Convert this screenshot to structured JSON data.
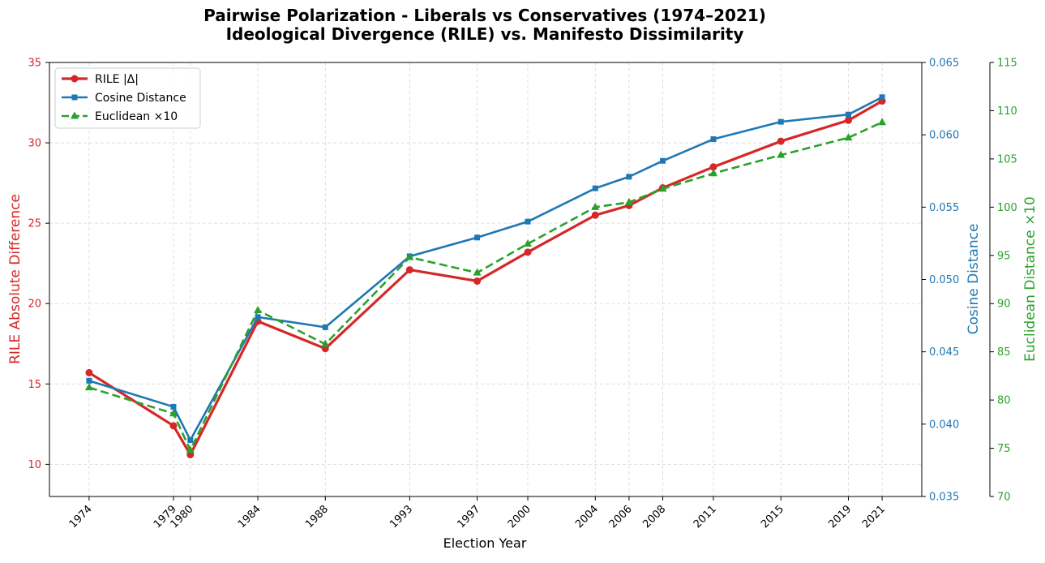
{
  "chart_data": {
    "type": "line",
    "title_line1": "Pairwise Polarization - Liberals vs Conservatives (1974–2021)",
    "title_line2": "Ideological Divergence (RILE) vs. Manifesto Dissimilarity",
    "xlabel": "Election Year",
    "x": [
      1974,
      1979,
      1980,
      1984,
      1988,
      1993,
      1997,
      2000,
      2004,
      2006,
      2008,
      2011,
      2015,
      2019,
      2021
    ],
    "grid": true,
    "legend_position": "top-left",
    "axes": {
      "left": {
        "label": "RILE Absolute Difference",
        "ylim": [
          8,
          35
        ],
        "ticks": [
          10,
          15,
          20,
          25,
          30,
          35
        ],
        "color": "#d62728"
      },
      "right1": {
        "label": "Cosine Distance",
        "ylim": [
          0.035,
          0.065
        ],
        "ticks": [
          0.035,
          0.04,
          0.045,
          0.05,
          0.055,
          0.06,
          0.065
        ],
        "tick_labels": [
          "0.035",
          "0.040",
          "0.045",
          "0.050",
          "0.055",
          "0.060",
          "0.065"
        ],
        "color": "#1f77b4"
      },
      "right2": {
        "label": "Euclidean Distance ×10",
        "ylim": [
          70,
          115
        ],
        "ticks": [
          70,
          75,
          80,
          85,
          90,
          95,
          100,
          105,
          110,
          115
        ],
        "color": "#2ca02c"
      }
    },
    "series": [
      {
        "name": "RILE |Δ|",
        "axis": "left",
        "color": "#d62728",
        "marker": "circle",
        "dash": "solid",
        "values": [
          15.7,
          12.4,
          10.6,
          18.9,
          17.2,
          22.1,
          21.4,
          23.2,
          25.5,
          26.1,
          27.2,
          28.5,
          30.1,
          31.4,
          32.6
        ]
      },
      {
        "name": "Cosine Distance",
        "axis": "right1",
        "color": "#1f77b4",
        "marker": "square",
        "dash": "solid",
        "values": [
          0.043,
          0.0412,
          0.0389,
          0.0474,
          0.0467,
          0.0516,
          0.0529,
          0.054,
          0.0563,
          0.0571,
          0.0582,
          0.0597,
          0.0609,
          0.0614,
          0.0626
        ]
      },
      {
        "name": "Euclidean ×10",
        "axis": "right2",
        "color": "#2ca02c",
        "marker": "triangle",
        "dash": "dashed",
        "values": [
          81.3,
          78.6,
          74.8,
          89.3,
          85.8,
          94.8,
          93.2,
          96.2,
          100.0,
          100.5,
          101.9,
          103.5,
          105.4,
          107.2,
          108.8
        ]
      }
    ]
  }
}
